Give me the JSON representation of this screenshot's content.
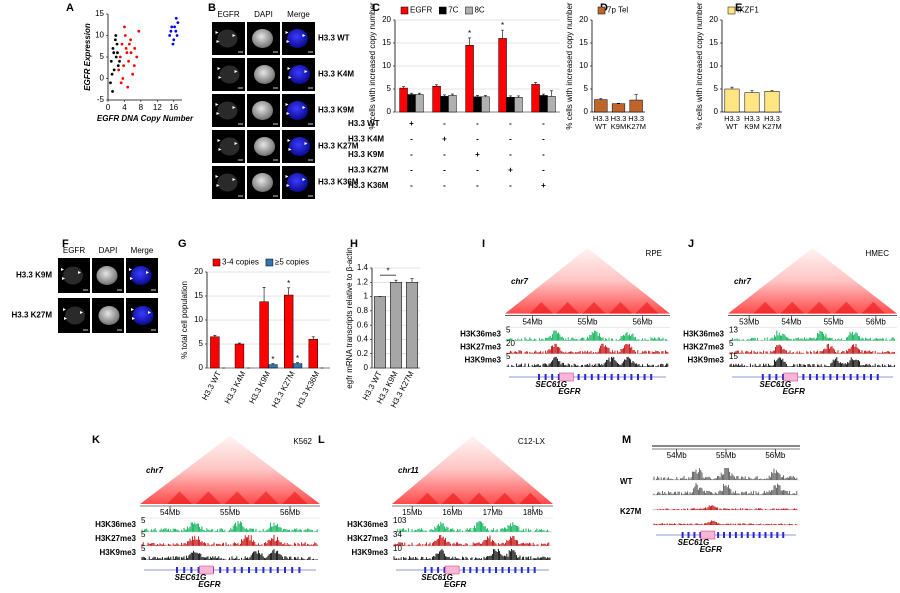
{
  "figure": {
    "panel_labels": [
      "A",
      "B",
      "C",
      "D",
      "E",
      "F",
      "G",
      "H",
      "I",
      "J",
      "K",
      "L",
      "M"
    ],
    "B": {
      "columns": [
        "EGFR",
        "DAPI",
        "Merge"
      ],
      "rows": [
        "H3.3 WT",
        "H3.3 K4M",
        "H3.3 K9M",
        "H3.3 K27M",
        "H3.3 K36M"
      ]
    },
    "F": {
      "columns": [
        "EGFR",
        "DAPI",
        "Merge"
      ],
      "rows": [
        "H3.3 K9M",
        "H3.3 K27M"
      ]
    },
    "C_table": {
      "rows": [
        {
          "label": "H3.3 WT",
          "marks": [
            "+",
            "-",
            "-",
            "-",
            "-"
          ]
        },
        {
          "label": "H3.3 K4M",
          "marks": [
            "-",
            "+",
            "-",
            "-",
            "-"
          ]
        },
        {
          "label": "H3.3 K9M",
          "marks": [
            "-",
            "-",
            "+",
            "-",
            "-"
          ]
        },
        {
          "label": "H3.3 K27M",
          "marks": [
            "-",
            "-",
            "-",
            "+",
            "-"
          ]
        },
        {
          "label": "H3.3 K36M",
          "marks": [
            "-",
            "-",
            "-",
            "-",
            "+"
          ]
        }
      ]
    },
    "browsers": [
      {
        "chromosome": "chr7",
        "cell": "RPE",
        "coords": [
          "54Mb",
          "55Mb",
          "56Mb"
        ],
        "tracks": [
          {
            "name": "H3K36me3",
            "color": "#00b050",
            "scale": "5"
          },
          {
            "name": "H3K27me3",
            "color": "#c00000",
            "scale": "20"
          },
          {
            "name": "H3K9me3",
            "color": "#000000",
            "scale": "5"
          }
        ],
        "genes": [
          "SEC61G",
          "EGFR"
        ]
      },
      {
        "chromosome": "chr7",
        "cell": "HMEC",
        "coords": [
          "53Mb",
          "54Mb",
          "55Mb",
          "56Mb"
        ],
        "tracks": [
          {
            "name": "H3K36me3",
            "color": "#00b050",
            "scale": "13"
          },
          {
            "name": "H3K27me3",
            "color": "#c00000",
            "scale": "5"
          },
          {
            "name": "H3K9me3",
            "color": "#000000",
            "scale": "15"
          }
        ],
        "genes": [
          "SEC61G",
          "EGFR"
        ]
      },
      {
        "chromosome": "chr7",
        "cell": "K562",
        "coords": [
          "54Mb",
          "55Mb",
          "56Mb"
        ],
        "tracks": [
          {
            "name": "H3K36me3",
            "color": "#00b050",
            "scale": "5"
          },
          {
            "name": "H3K27me3",
            "color": "#c00000",
            "scale": "5"
          },
          {
            "name": "H3K9me3",
            "color": "#000000",
            "scale": "5"
          }
        ],
        "genes": [
          "SEC61G",
          "EGFR"
        ]
      },
      {
        "chromosome": "chr11",
        "cell": "C12-LX",
        "coords": [
          "15Mb",
          "16Mb",
          "17Mb",
          "18Mb"
        ],
        "tracks": [
          {
            "name": "H3K36me3",
            "color": "#00b050",
            "scale": "103"
          },
          {
            "name": "H3K27me3",
            "color": "#c00000",
            "scale": "34"
          },
          {
            "name": "H3K9me3",
            "color": "#000000",
            "scale": "10"
          }
        ],
        "genes": [
          "SEC61G",
          "EGFR"
        ]
      }
    ],
    "M": {
      "coords": [
        "54Mb",
        "55Mb",
        "56Mb"
      ],
      "groups": [
        {
          "name": "WT",
          "color": "#555555"
        },
        {
          "name": "K27M",
          "color": "#c00000"
        }
      ],
      "genes": [
        "SEC61G",
        "EGFR"
      ]
    }
  },
  "chart_data": [
    {
      "type": "scatter",
      "x_label": "EGFR DNA Copy Number",
      "y_label": "EGFR Expression",
      "xlim": [
        0,
        18
      ],
      "xticks": [
        0,
        4,
        8,
        12,
        16
      ],
      "ylim": [
        -5,
        15
      ],
      "yticks": [
        -5,
        0,
        5,
        10,
        15
      ],
      "series": [
        {
          "color": "#000000",
          "x": [
            0.8,
            1.2,
            1.5,
            1.8,
            2.0,
            2.2,
            2.5,
            1.0,
            1.4,
            2.8,
            0.6,
            1.9,
            2.3,
            1.1
          ],
          "y": [
            4,
            7,
            2,
            9,
            5,
            8,
            3,
            1,
            6,
            4,
            -1,
            10,
            6,
            -3
          ]
        },
        {
          "color": "#ff0000",
          "x": [
            2.6,
            3,
            3.4,
            3.8,
            4.2,
            4.6,
            5,
            5.5,
            6,
            6.5,
            7,
            7.5,
            3.2,
            4.0,
            4.8,
            5.6,
            6.4,
            3.6,
            4.4,
            5.2
          ],
          "y": [
            2,
            5,
            8,
            3,
            10,
            6,
            4,
            9,
            1,
            7,
            5,
            11,
            -1,
            12,
            -2,
            6,
            3,
            0,
            7,
            8
          ]
        },
        {
          "color": "#0000ff",
          "x": [
            15,
            15.5,
            16,
            16.5,
            17,
            15.8,
            16.2,
            16.8,
            15.3,
            16.6
          ],
          "y": [
            10,
            12,
            9,
            11,
            13,
            8,
            12,
            10,
            11,
            14
          ]
        }
      ]
    },
    {
      "type": "bar",
      "y_label": "% cells with increased copy number",
      "categories": [
        null,
        null,
        null,
        null,
        null
      ],
      "ylim": [
        0,
        20
      ],
      "yticks": [
        0,
        5,
        10,
        15,
        20
      ],
      "grid": true,
      "series": [
        {
          "name": "EGFR",
          "color": "#ff0000",
          "values": [
            5.2,
            5.6,
            14.5,
            16,
            6
          ],
          "errors": [
            0.3,
            0.3,
            1.6,
            1.8,
            0.4
          ]
        },
        {
          "name": "7C",
          "color": "#000000",
          "values": [
            3.8,
            3.4,
            3.3,
            3.2,
            3.6
          ],
          "errors": [
            0.3,
            0.3,
            0.3,
            0.3,
            0.3
          ]
        },
        {
          "name": "8C",
          "color": "#b0b0b0",
          "values": [
            3.8,
            3.6,
            3.3,
            3.2,
            3.4
          ],
          "errors": [
            0.3,
            0.3,
            0.3,
            0.3,
            1.2
          ]
        }
      ],
      "annotations": [
        {
          "text": "*",
          "series": 0,
          "category": 2
        },
        {
          "text": "*",
          "series": 0,
          "category": 3
        }
      ]
    },
    {
      "type": "bar",
      "y_label": "% cells with increased copy number",
      "categories": [
        "H3.3 WT",
        "H3.3 K9M",
        "H3.3 K27M"
      ],
      "ylim": [
        0,
        20
      ],
      "yticks": [
        0,
        5,
        10,
        15,
        20
      ],
      "grid": false,
      "series": [
        {
          "name": "7p Tel",
          "color": "#c0652a",
          "values": [
            2.7,
            1.8,
            2.6
          ],
          "errors": [
            0.2,
            0.1,
            1.2
          ]
        }
      ]
    },
    {
      "type": "bar",
      "y_label": "% cells with increased copy number",
      "categories": [
        "H3.3 WT",
        "H3.3 K9M",
        "H3.3 K27M"
      ],
      "ylim": [
        0,
        20
      ],
      "yticks": [
        0,
        5,
        10,
        15,
        20
      ],
      "grid": false,
      "series": [
        {
          "name": "IKZF1",
          "color": "#ffe680",
          "values": [
            5,
            4.2,
            4.5
          ],
          "errors": [
            0.4,
            0.5,
            0.2
          ]
        }
      ]
    },
    {
      "type": "bar",
      "y_label": "% total cell population",
      "categories": [
        "H3.3 WT",
        "H3.3 K4M",
        "H3.3 K9M",
        "H3.3 K27M",
        "H3.3 K36M"
      ],
      "ylim": [
        0,
        20
      ],
      "yticks": [
        0,
        5,
        10,
        15,
        20
      ],
      "grid": true,
      "series": [
        {
          "name": "3-4 copies",
          "color": "#ff0000",
          "values": [
            6.5,
            5,
            13.8,
            15.2,
            6
          ],
          "errors": [
            0.3,
            0.2,
            3,
            1.5,
            0.5
          ]
        },
        {
          "name": "≥5 copies",
          "color": "#2e75b6",
          "values": [
            0,
            0,
            0.7,
            0.9,
            0
          ],
          "errors": [
            0,
            0,
            0.2,
            0.2,
            0
          ]
        }
      ],
      "annotations": [
        {
          "text": "*",
          "series": 1,
          "category": 2
        },
        {
          "text": "*",
          "series": 0,
          "category": 3
        },
        {
          "text": "*",
          "series": 1,
          "category": 3
        }
      ]
    },
    {
      "type": "bar",
      "y_label": "egfr mRNA transcripts relative to β-actin",
      "categories": [
        "H3.3 WT",
        "H3.3 K9M",
        "H3.3 K27M"
      ],
      "ylim": [
        0,
        1.4
      ],
      "yticks": [
        0,
        0.2,
        0.4,
        0.6,
        0.8,
        1,
        1.2,
        1.4
      ],
      "grid": true,
      "color": "#a6a6a6",
      "values": [
        1,
        1.2,
        1.2
      ],
      "errors": [
        0,
        0.03,
        0.05
      ],
      "brackets": [
        {
          "text": "*",
          "from": 0,
          "to": 1
        }
      ]
    }
  ]
}
